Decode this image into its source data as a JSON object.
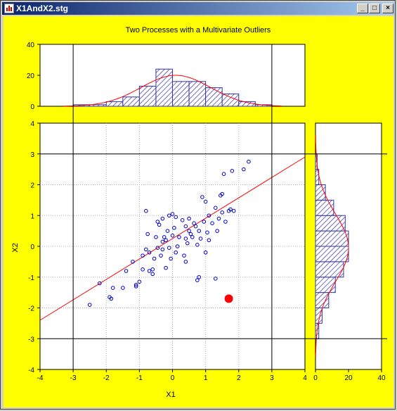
{
  "window": {
    "title": "X1AndX2.stg",
    "minimize_icon": "minimize-icon",
    "maximize_icon": "maximize-icon",
    "close_icon": "close-icon"
  },
  "colors": {
    "background": "#ffff00",
    "points": "#0000cc",
    "hist_fill": "#3333aa",
    "fit_line": "#ff0000",
    "outlier": "#ff0000"
  },
  "chart_data": {
    "title": "Two Processes with a Multivariate Outliers",
    "xlabel": "X1",
    "ylabel": "X2",
    "xlim": [
      -4,
      4
    ],
    "ylim": [
      -4,
      4
    ],
    "xticks": [
      "-4",
      "-3",
      "-2",
      "-1",
      "0",
      "1",
      "2",
      "3",
      "4"
    ],
    "yticks": [
      "-4",
      "-3",
      "-2",
      "-1",
      "0",
      "1",
      "2",
      "3",
      "4"
    ],
    "grid": true,
    "reference_lines": {
      "x": [
        -3,
        3
      ],
      "y": [
        -3,
        3
      ]
    },
    "scatter": {
      "type": "scatter",
      "points": [
        [
          -2.5,
          -1.9
        ],
        [
          -2.2,
          -1.2
        ],
        [
          -1.9,
          -1.65
        ],
        [
          -1.85,
          -1.7
        ],
        [
          -1.8,
          -1.35
        ],
        [
          -1.5,
          -1.35
        ],
        [
          -1.4,
          -0.8
        ],
        [
          -1.2,
          -0.5
        ],
        [
          -1.1,
          -1.3
        ],
        [
          -1.1,
          -1.25
        ],
        [
          -1.0,
          -1.15
        ],
        [
          -0.9,
          -0.75
        ],
        [
          -0.9,
          -0.3
        ],
        [
          -0.8,
          -0.1
        ],
        [
          -0.75,
          0.4
        ],
        [
          -0.7,
          -0.8
        ],
        [
          -0.7,
          -0.2
        ],
        [
          -0.6,
          -0.75
        ],
        [
          -0.6,
          -0.9
        ],
        [
          -0.55,
          -0.4
        ],
        [
          -0.5,
          0.3
        ],
        [
          -0.45,
          0.8
        ],
        [
          -0.45,
          -0.05
        ],
        [
          -0.4,
          0.7
        ],
        [
          -0.35,
          -0.3
        ],
        [
          -0.3,
          -0.1
        ],
        [
          -0.3,
          0.15
        ],
        [
          -0.25,
          0.3
        ],
        [
          -0.2,
          -0.7
        ],
        [
          -0.2,
          0.2
        ],
        [
          -0.15,
          0.5
        ],
        [
          -0.1,
          -0.05
        ],
        [
          -0.1,
          1.0
        ],
        [
          -0.05,
          -0.4
        ],
        [
          0.0,
          1.05
        ],
        [
          0.0,
          0.35
        ],
        [
          0.05,
          0.6
        ],
        [
          0.1,
          -0.2
        ],
        [
          0.15,
          0.0
        ],
        [
          0.2,
          0.3
        ],
        [
          0.3,
          0.85
        ],
        [
          0.35,
          -0.3
        ],
        [
          0.4,
          0.25
        ],
        [
          0.4,
          0.65
        ],
        [
          0.45,
          0.1
        ],
        [
          0.5,
          0.9
        ],
        [
          0.5,
          0.5
        ],
        [
          0.55,
          0.4
        ],
        [
          0.6,
          0.3
        ],
        [
          0.65,
          0.75
        ],
        [
          0.7,
          0.65
        ],
        [
          0.75,
          -1.1
        ],
        [
          0.75,
          0.05
        ],
        [
          0.8,
          -1.0
        ],
        [
          0.8,
          0.5
        ],
        [
          0.85,
          0.25
        ],
        [
          0.9,
          1.6
        ],
        [
          0.95,
          0.8
        ],
        [
          1.0,
          1.45
        ],
        [
          1.0,
          -0.2
        ],
        [
          1.05,
          0.45
        ],
        [
          1.1,
          0.2
        ],
        [
          1.2,
          0.75
        ],
        [
          1.3,
          1.25
        ],
        [
          1.35,
          0.5
        ],
        [
          1.4,
          0.9
        ],
        [
          1.45,
          1.65
        ],
        [
          1.5,
          1.7
        ],
        [
          1.5,
          1.1
        ],
        [
          1.55,
          2.35
        ],
        [
          1.6,
          0.8
        ],
        [
          1.7,
          1.15
        ],
        [
          1.75,
          1.2
        ],
        [
          1.8,
          2.45
        ],
        [
          1.85,
          1.15
        ],
        [
          2.15,
          2.5
        ],
        [
          2.3,
          2.75
        ],
        [
          0.4,
          -0.5
        ],
        [
          -0.8,
          1.15
        ],
        [
          -0.3,
          0.9
        ],
        [
          0.1,
          0.95
        ],
        [
          1.1,
          1.0
        ],
        [
          1.3,
          -1.05
        ]
      ],
      "outlier": [
        1.7,
        -1.7
      ]
    },
    "regression_line": {
      "x": [
        -4,
        4
      ],
      "y": [
        -2.4,
        2.9
      ]
    },
    "top_histogram": {
      "type": "bar",
      "bins": [
        -3,
        -2.5,
        -2,
        -1.5,
        -1,
        -0.5,
        0,
        0.5,
        1,
        1.5,
        2,
        2.5,
        3
      ],
      "counts": [
        1,
        1,
        3,
        6,
        13,
        24,
        16,
        16,
        12,
        8,
        3,
        1
      ],
      "ylim": [
        0,
        40
      ],
      "yticks": [
        "0",
        "20",
        "40"
      ]
    },
    "right_histogram": {
      "type": "bar",
      "bins": [
        -3,
        -2.5,
        -2,
        -1.5,
        -1,
        -0.5,
        0,
        0.5,
        1,
        1.5,
        2,
        2.5,
        3
      ],
      "counts": [
        2,
        4,
        8,
        12,
        17,
        20,
        20,
        18,
        11,
        6,
        2,
        1
      ],
      "xlim": [
        0,
        40
      ],
      "xticks": [
        "0",
        "20",
        "40"
      ]
    }
  }
}
